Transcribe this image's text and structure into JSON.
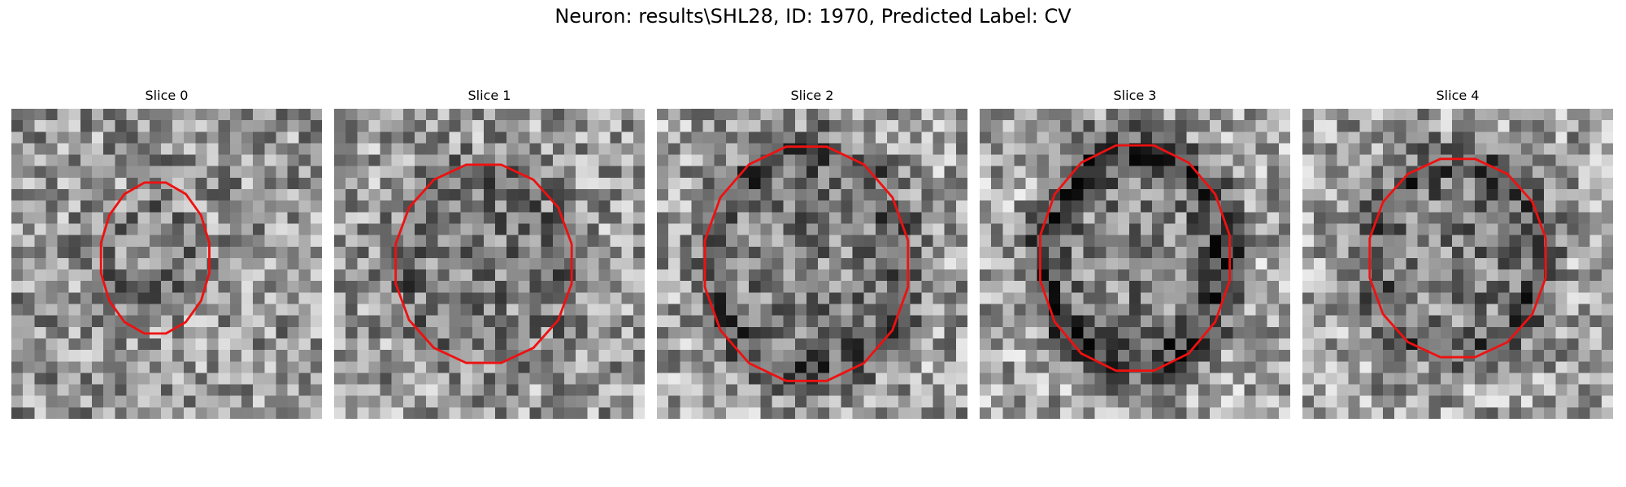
{
  "figure": {
    "title": "Neuron: results\\SHL28, ID: 1970, Predicted Label: CV"
  },
  "slices": [
    {
      "title": "Slice 0",
      "seed": 11,
      "contour_center": [
        12.5,
        13.0
      ],
      "contour_radius": [
        4.8,
        6.7
      ],
      "ring_dark": 0.0
    },
    {
      "title": "Slice 1",
      "seed": 23,
      "contour_center": [
        13.0,
        13.5
      ],
      "contour_radius": [
        7.8,
        8.8
      ],
      "ring_dark": 0.15
    },
    {
      "title": "Slice 2",
      "seed": 37,
      "contour_center": [
        13.0,
        13.5
      ],
      "contour_radius": [
        9.0,
        10.4
      ],
      "ring_dark": 0.35
    },
    {
      "title": "Slice 3",
      "seed": 53,
      "contour_center": [
        13.5,
        13.0
      ],
      "contour_radius": [
        8.4,
        10.0
      ],
      "ring_dark": 0.55
    },
    {
      "title": "Slice 4",
      "seed": 71,
      "contour_center": [
        13.5,
        13.0
      ],
      "contour_radius": [
        7.8,
        8.8
      ],
      "ring_dark": 0.35
    }
  ],
  "colors": {
    "contour": "#ee1111"
  }
}
